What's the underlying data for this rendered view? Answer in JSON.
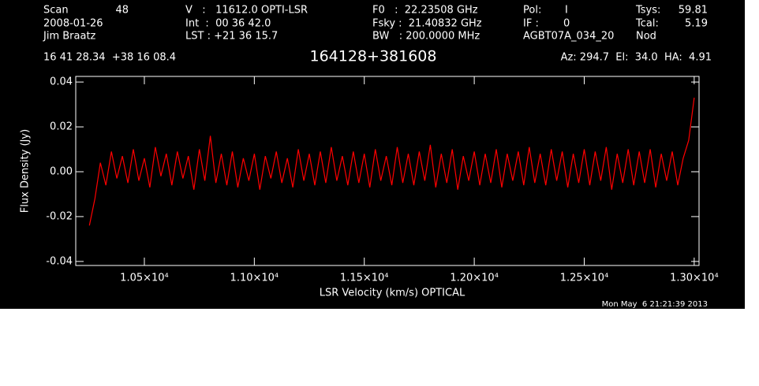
{
  "chart_data": {
    "type": "line",
    "title": "164128+381608",
    "header": [
      "Scan",
      "48",
      "2008-01-26",
      "Jim Braatz",
      "V   :   11612.0 OPTI-LSR",
      "Int  :  00 36 42.0",
      "LST : +21 36 15.7",
      "F0   :  22.23508 GHz",
      "Fsky :  21.40832 GHz",
      "BW   : 200.0000 MHz",
      "Pol:",
      "I",
      "IF :",
      "0",
      "AGBT07A_034_20",
      "Tsys:",
      "59.81",
      "Tcal:",
      "5.19",
      "Nod",
      "16 41 28.34  +38 16 08.4",
      "Az: 294.7  El:  34.0  HA:  4.91"
    ],
    "timestamp": "Mon May  6 21:21:39 2013",
    "xlabel": "LSR Velocity (km/s) OPTICAL",
    "ylabel": "Flux Density (Jy)",
    "color": "#ff0000",
    "xlim": [
      10188,
      13022
    ],
    "ylim": [
      -0.0418,
      0.0425
    ],
    "xticks": [
      {
        "value": 10500,
        "label": "1.05×10⁴"
      },
      {
        "value": 11000,
        "label": "1.10×10⁴"
      },
      {
        "value": 11500,
        "label": "1.15×10⁴"
      },
      {
        "value": 12000,
        "label": "1.20×10⁴"
      },
      {
        "value": 12500,
        "label": "1.25×10⁴"
      },
      {
        "value": 13000,
        "label": "1.30×10⁴"
      }
    ],
    "yticks": [
      -0.04,
      -0.02,
      {
        "value": 0,
        "label": "0.00"
      },
      0.02,
      0.04
    ],
    "x": [
      10250,
      10275,
      10300,
      10325,
      10350,
      10375,
      10400,
      10425,
      10450,
      10475,
      10500,
      10525,
      10550,
      10575,
      10600,
      10625,
      10650,
      10675,
      10700,
      10725,
      10750,
      10775,
      10800,
      10825,
      10850,
      10875,
      10900,
      10925,
      10950,
      10975,
      11000,
      11025,
      11050,
      11075,
      11100,
      11125,
      11150,
      11175,
      11200,
      11225,
      11250,
      11275,
      11300,
      11325,
      11350,
      11375,
      11400,
      11425,
      11450,
      11475,
      11500,
      11525,
      11550,
      11575,
      11600,
      11625,
      11650,
      11675,
      11700,
      11725,
      11750,
      11775,
      11800,
      11825,
      11850,
      11875,
      11900,
      11925,
      11950,
      11975,
      12000,
      12025,
      12050,
      12075,
      12100,
      12125,
      12150,
      12175,
      12200,
      12225,
      12250,
      12275,
      12300,
      12325,
      12350,
      12375,
      12400,
      12425,
      12450,
      12475,
      12500,
      12525,
      12550,
      12575,
      12600,
      12625,
      12650,
      12675,
      12700,
      12725,
      12750,
      12775,
      12800,
      12825,
      12850,
      12875,
      12900,
      12925,
      12950,
      12975,
      13000
    ],
    "values": [
      -0.024,
      -0.012,
      0.004,
      -0.006,
      0.009,
      -0.003,
      0.007,
      -0.005,
      0.01,
      -0.004,
      0.006,
      -0.007,
      0.011,
      -0.002,
      0.008,
      -0.006,
      0.009,
      -0.003,
      0.007,
      -0.008,
      0.01,
      -0.004,
      0.016,
      -0.005,
      0.008,
      -0.006,
      0.009,
      -0.007,
      0.006,
      -0.004,
      0.008,
      -0.008,
      0.007,
      -0.003,
      0.009,
      -0.005,
      0.006,
      -0.007,
      0.01,
      -0.004,
      0.008,
      -0.006,
      0.009,
      -0.005,
      0.011,
      -0.004,
      0.007,
      -0.006,
      0.009,
      -0.005,
      0.008,
      -0.007,
      0.01,
      -0.004,
      0.007,
      -0.006,
      0.011,
      -0.005,
      0.008,
      -0.006,
      0.009,
      -0.004,
      0.012,
      -0.007,
      0.008,
      -0.005,
      0.01,
      -0.008,
      0.007,
      -0.004,
      0.009,
      -0.006,
      0.008,
      -0.005,
      0.01,
      -0.007,
      0.008,
      -0.004,
      0.009,
      -0.006,
      0.011,
      -0.005,
      0.008,
      -0.006,
      0.01,
      -0.004,
      0.009,
      -0.007,
      0.008,
      -0.005,
      0.01,
      -0.006,
      0.009,
      -0.004,
      0.011,
      -0.008,
      0.008,
      -0.005,
      0.01,
      -0.006,
      0.009,
      -0.005,
      0.01,
      -0.007,
      0.008,
      -0.004,
      0.009,
      -0.006,
      0.006,
      0.014,
      0.033
    ]
  }
}
